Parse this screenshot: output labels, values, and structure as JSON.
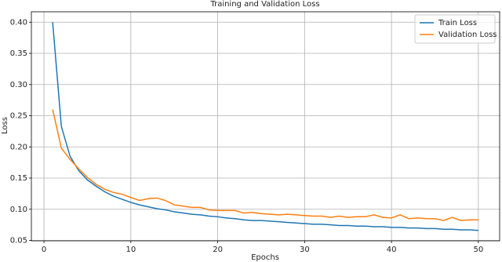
{
  "chart_data": {
    "type": "line",
    "title": "Training and Validation Loss",
    "x_label": "Epochs",
    "y_label": "Loss",
    "x": [
      1,
      2,
      3,
      4,
      5,
      6,
      7,
      8,
      9,
      10,
      11,
      12,
      13,
      14,
      15,
      16,
      17,
      18,
      19,
      20,
      21,
      22,
      23,
      24,
      25,
      26,
      27,
      28,
      29,
      30,
      31,
      32,
      33,
      34,
      35,
      36,
      37,
      38,
      39,
      40,
      41,
      42,
      43,
      44,
      45,
      46,
      47,
      48,
      49,
      50
    ],
    "series": [
      {
        "name": "Train Loss",
        "color": "#1f77b4",
        "values": [
          0.4,
          0.233,
          0.185,
          0.162,
          0.147,
          0.137,
          0.128,
          0.121,
          0.116,
          0.111,
          0.107,
          0.104,
          0.101,
          0.099,
          0.096,
          0.094,
          0.092,
          0.091,
          0.089,
          0.088,
          0.086,
          0.085,
          0.083,
          0.082,
          0.082,
          0.081,
          0.08,
          0.079,
          0.078,
          0.077,
          0.076,
          0.076,
          0.075,
          0.074,
          0.074,
          0.073,
          0.073,
          0.072,
          0.072,
          0.071,
          0.071,
          0.07,
          0.07,
          0.069,
          0.069,
          0.068,
          0.068,
          0.067,
          0.067,
          0.066
        ]
      },
      {
        "name": "Validation Loss",
        "color": "#ff7f0e",
        "values": [
          0.26,
          0.198,
          0.18,
          0.165,
          0.151,
          0.14,
          0.132,
          0.127,
          0.124,
          0.119,
          0.114,
          0.117,
          0.118,
          0.114,
          0.107,
          0.105,
          0.103,
          0.103,
          0.099,
          0.098,
          0.098,
          0.098,
          0.094,
          0.095,
          0.093,
          0.092,
          0.091,
          0.092,
          0.091,
          0.09,
          0.089,
          0.089,
          0.087,
          0.089,
          0.087,
          0.088,
          0.088,
          0.091,
          0.087,
          0.086,
          0.091,
          0.085,
          0.086,
          0.085,
          0.085,
          0.082,
          0.087,
          0.082,
          0.083,
          0.083
        ]
      }
    ],
    "xlim": [
      -1.45,
      52.45
    ],
    "ylim": [
      0.0494,
      0.4167
    ],
    "xticks": [
      0,
      10,
      20,
      30,
      40,
      50
    ],
    "yticks": [
      0.05,
      {
        "value": 0.1,
        "label": "0.10"
      },
      0.15,
      {
        "value": 0.2,
        "label": "0.20"
      },
      0.25,
      {
        "value": 0.3,
        "label": "0.30"
      },
      0.35,
      {
        "value": 0.4,
        "label": "0.40"
      }
    ],
    "grid": true,
    "legend": "upper-right"
  }
}
